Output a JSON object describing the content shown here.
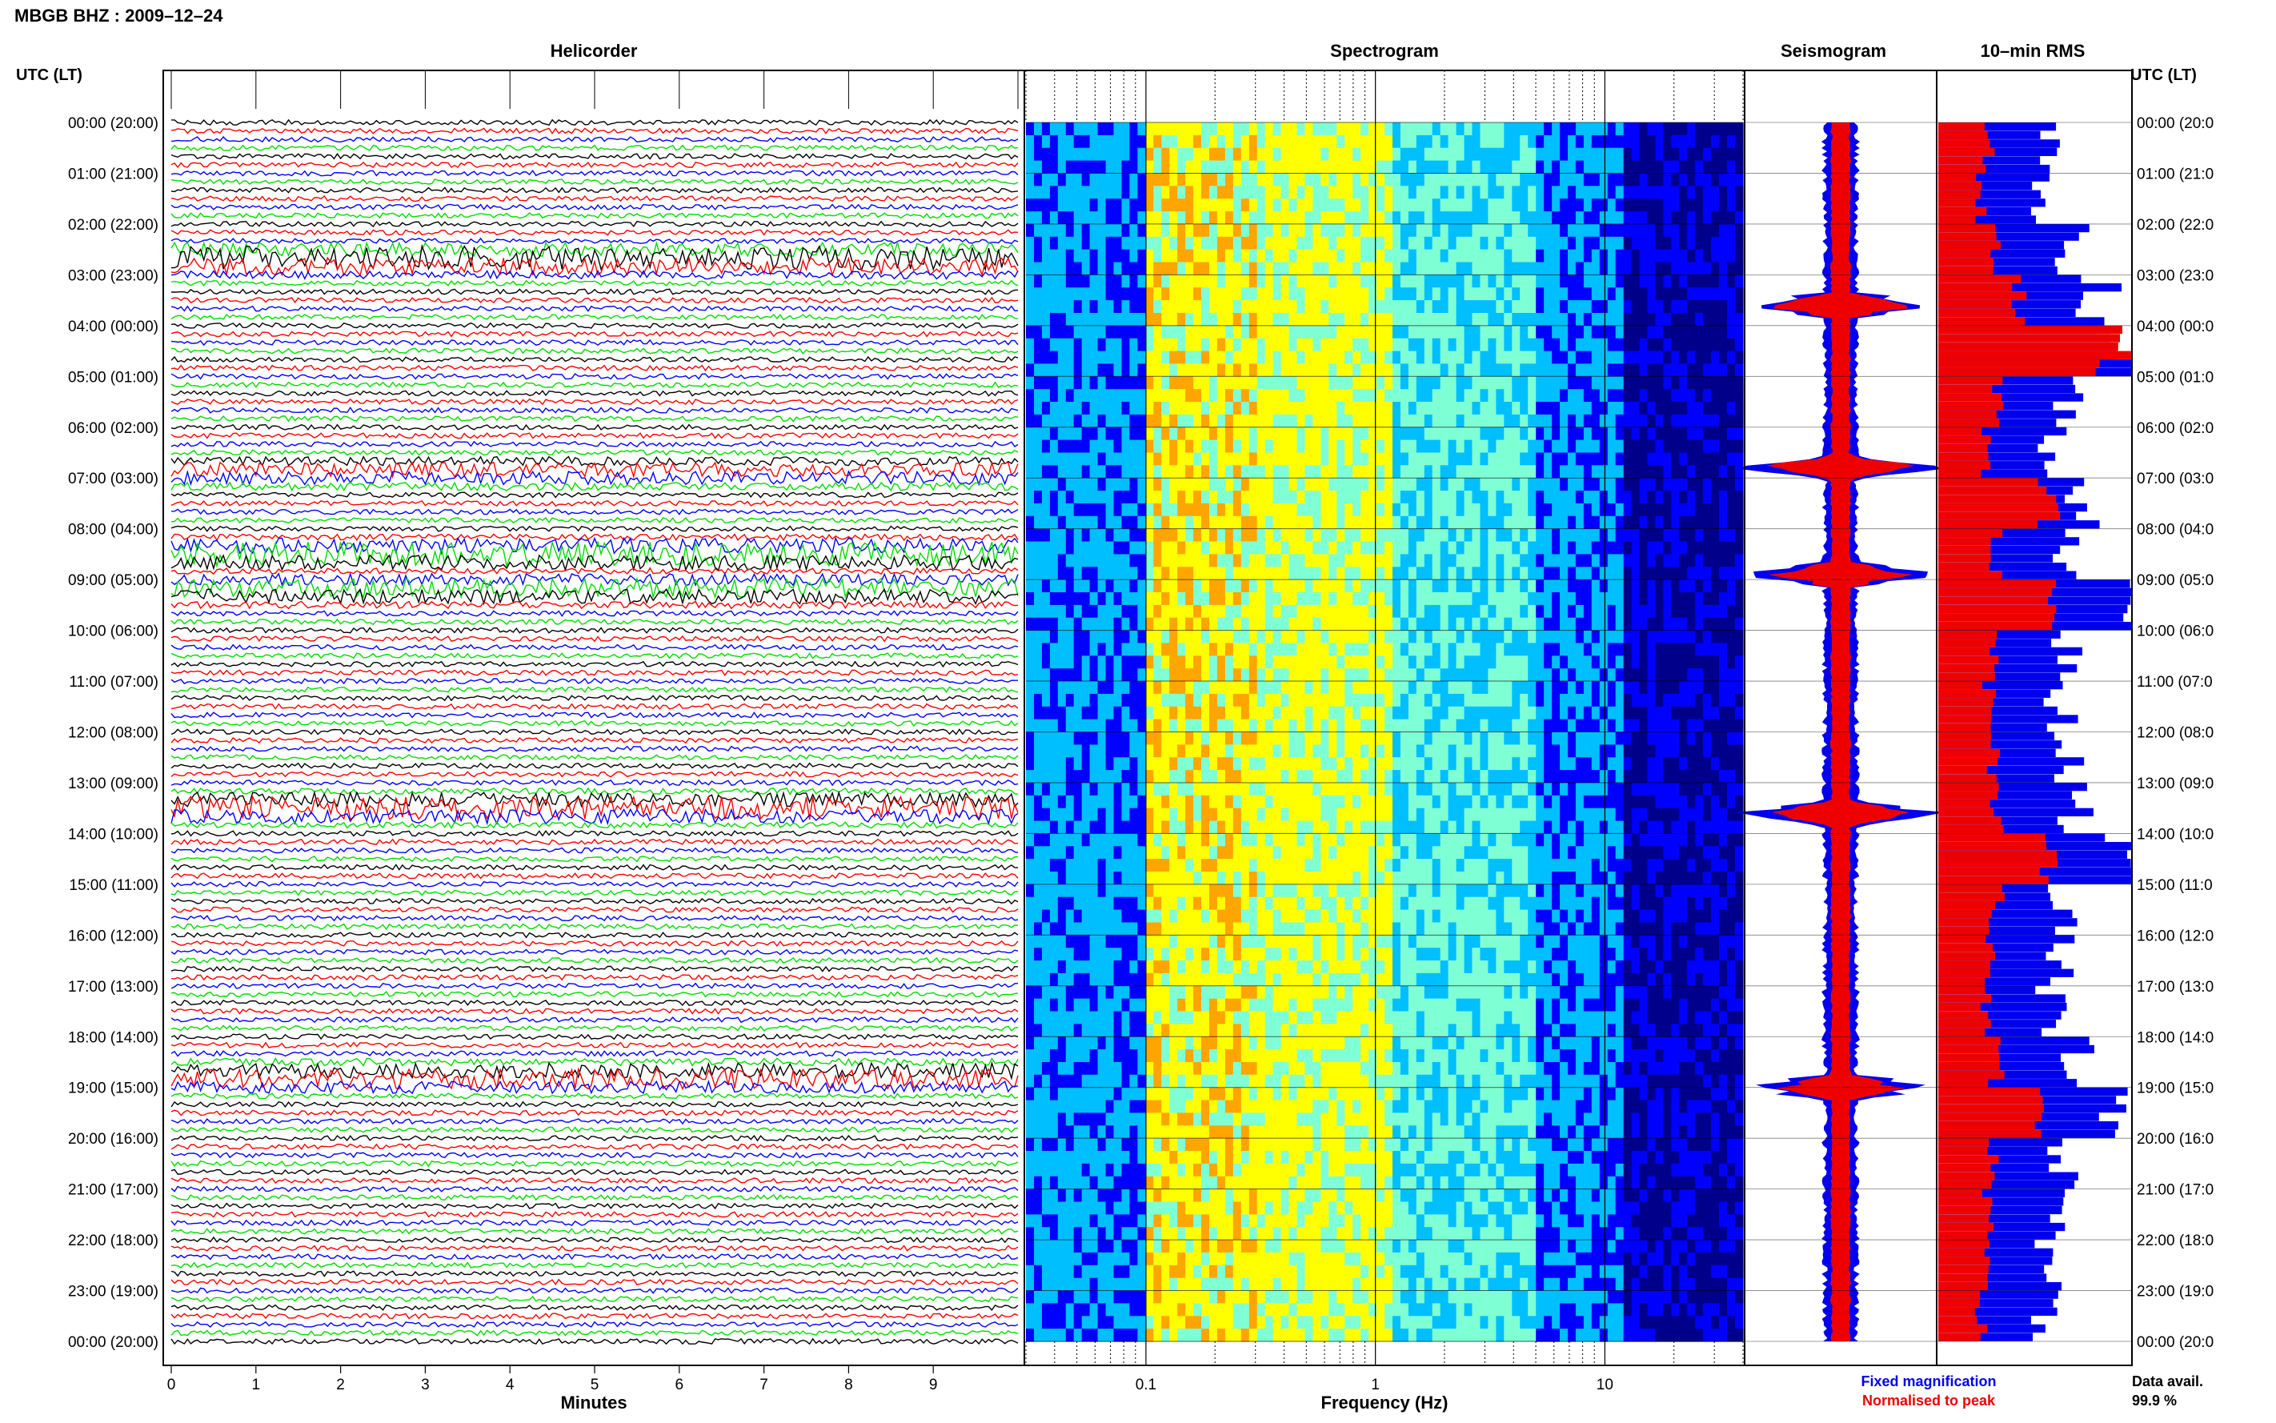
{
  "header": {
    "title": "MBGB BHZ : 2009–12–24",
    "utc_label": "UTC (LT)",
    "utc_label_right": "UTC (LT)"
  },
  "panels": {
    "helicorder": "Helicorder",
    "spectrogram": "Spectrogram",
    "seismogram": "Seismogram",
    "rms": "10–min RMS"
  },
  "time_labels": [
    "00:00 (20:00)",
    "01:00 (21:00)",
    "02:00 (22:00)",
    "03:00 (23:00)",
    "04:00 (00:00)",
    "05:00 (01:00)",
    "06:00 (02:00)",
    "07:00 (03:00)",
    "08:00 (04:00)",
    "09:00 (05:00)",
    "10:00 (06:00)",
    "11:00 (07:00)",
    "12:00 (08:00)",
    "13:00 (09:00)",
    "14:00 (10:00)",
    "15:00 (11:00)",
    "16:00 (12:00)",
    "17:00 (13:00)",
    "18:00 (14:00)",
    "19:00 (15:00)",
    "20:00 (16:00)",
    "21:00 (17:00)",
    "22:00 (18:00)",
    "23:00 (19:00)",
    "00:00 (20:00)"
  ],
  "time_labels_right": [
    "00:00 (20:0",
    "01:00 (21:0",
    "02:00 (22:0",
    "03:00 (23:0",
    "04:00 (00:0",
    "05:00 (01:0",
    "06:00 (02:0",
    "07:00 (03:0",
    "08:00 (04:0",
    "09:00 (05:0",
    "10:00 (06:0",
    "11:00 (07:0",
    "12:00 (08:0",
    "13:00 (09:0",
    "14:00 (10:0",
    "15:00 (11:0",
    "16:00 (12:0",
    "17:00 (13:0",
    "18:00 (14:0",
    "19:00 (15:0",
    "20:00 (16:0",
    "21:00 (17:0",
    "22:00 (18:0",
    "23:00 (19:0",
    "00:00 (20:0"
  ],
  "x_axis": {
    "helicorder_label": "Minutes",
    "helicorder_ticks": [
      "0",
      "1",
      "2",
      "3",
      "4",
      "5",
      "6",
      "7",
      "8",
      "9"
    ],
    "spectrogram_label": "Frequency (Hz)",
    "spectrogram_ticks": [
      "0.1",
      "1",
      "10"
    ]
  },
  "legend": {
    "fixed": "Fixed magnification",
    "normalised": "Normalised to peak",
    "fixed_color": "#0000ee",
    "normalised_color": "#ee0000"
  },
  "data_avail": {
    "label": "Data avail.",
    "value": "99.9 %"
  },
  "chart_data": [
    {
      "type": "line",
      "panel": "helicorder",
      "xlabel": "Minutes",
      "xlim": [
        0,
        10
      ],
      "trace_colors": [
        "#000000",
        "#ff0000",
        "#0000ff",
        "#00dd00"
      ],
      "lines_per_hour": 6,
      "hours": 24,
      "events": [
        {
          "hour": 2.7,
          "amp": 3.2
        },
        {
          "hour": 8.5,
          "amp": 3.0
        },
        {
          "hour": 9.2,
          "amp": 2.4
        },
        {
          "hour": 13.5,
          "amp": 2.8
        },
        {
          "hour": 18.8,
          "amp": 2.6
        },
        {
          "hour": 6.9,
          "amp": 1.8
        }
      ]
    },
    {
      "type": "heatmap",
      "panel": "spectrogram",
      "xlabel": "Frequency (Hz)",
      "xscale": "log",
      "xlim": [
        0.03,
        40
      ],
      "colormap": [
        "#00008b",
        "#0000ff",
        "#00bfff",
        "#7fffd4",
        "#ffff00",
        "#ffa500"
      ],
      "band_peak_hz": [
        0.13,
        0.6
      ]
    },
    {
      "type": "area",
      "panel": "seismogram",
      "series": [
        {
          "name": "Fixed magnification",
          "color": "#0000ee"
        },
        {
          "name": "Normalised to peak",
          "color": "#ee0000"
        }
      ],
      "spikes_hour": [
        3.6,
        6.8,
        8.9,
        13.6,
        19.0
      ]
    },
    {
      "type": "bar",
      "panel": "rms",
      "orientation": "horizontal",
      "bins_per_hour": 6,
      "series": [
        {
          "name": "Fixed magnification",
          "color": "#0000ee",
          "hourly": [
            0.62,
            0.58,
            0.7,
            0.85,
            1.0,
            0.7,
            0.62,
            0.75,
            0.72,
            1.0,
            0.7,
            0.66,
            0.68,
            0.72,
            1.0,
            0.68,
            0.64,
            0.6,
            0.72,
            1.0,
            0.65,
            0.62,
            0.6,
            0.58
          ]
        },
        {
          "name": "Normalised to peak",
          "color": "#ee0000",
          "hourly": [
            0.26,
            0.22,
            0.3,
            0.4,
            0.95,
            0.3,
            0.24,
            0.6,
            0.3,
            0.55,
            0.28,
            0.26,
            0.28,
            0.3,
            0.6,
            0.3,
            0.26,
            0.24,
            0.3,
            0.55,
            0.28,
            0.25,
            0.24,
            0.22
          ]
        }
      ]
    }
  ]
}
